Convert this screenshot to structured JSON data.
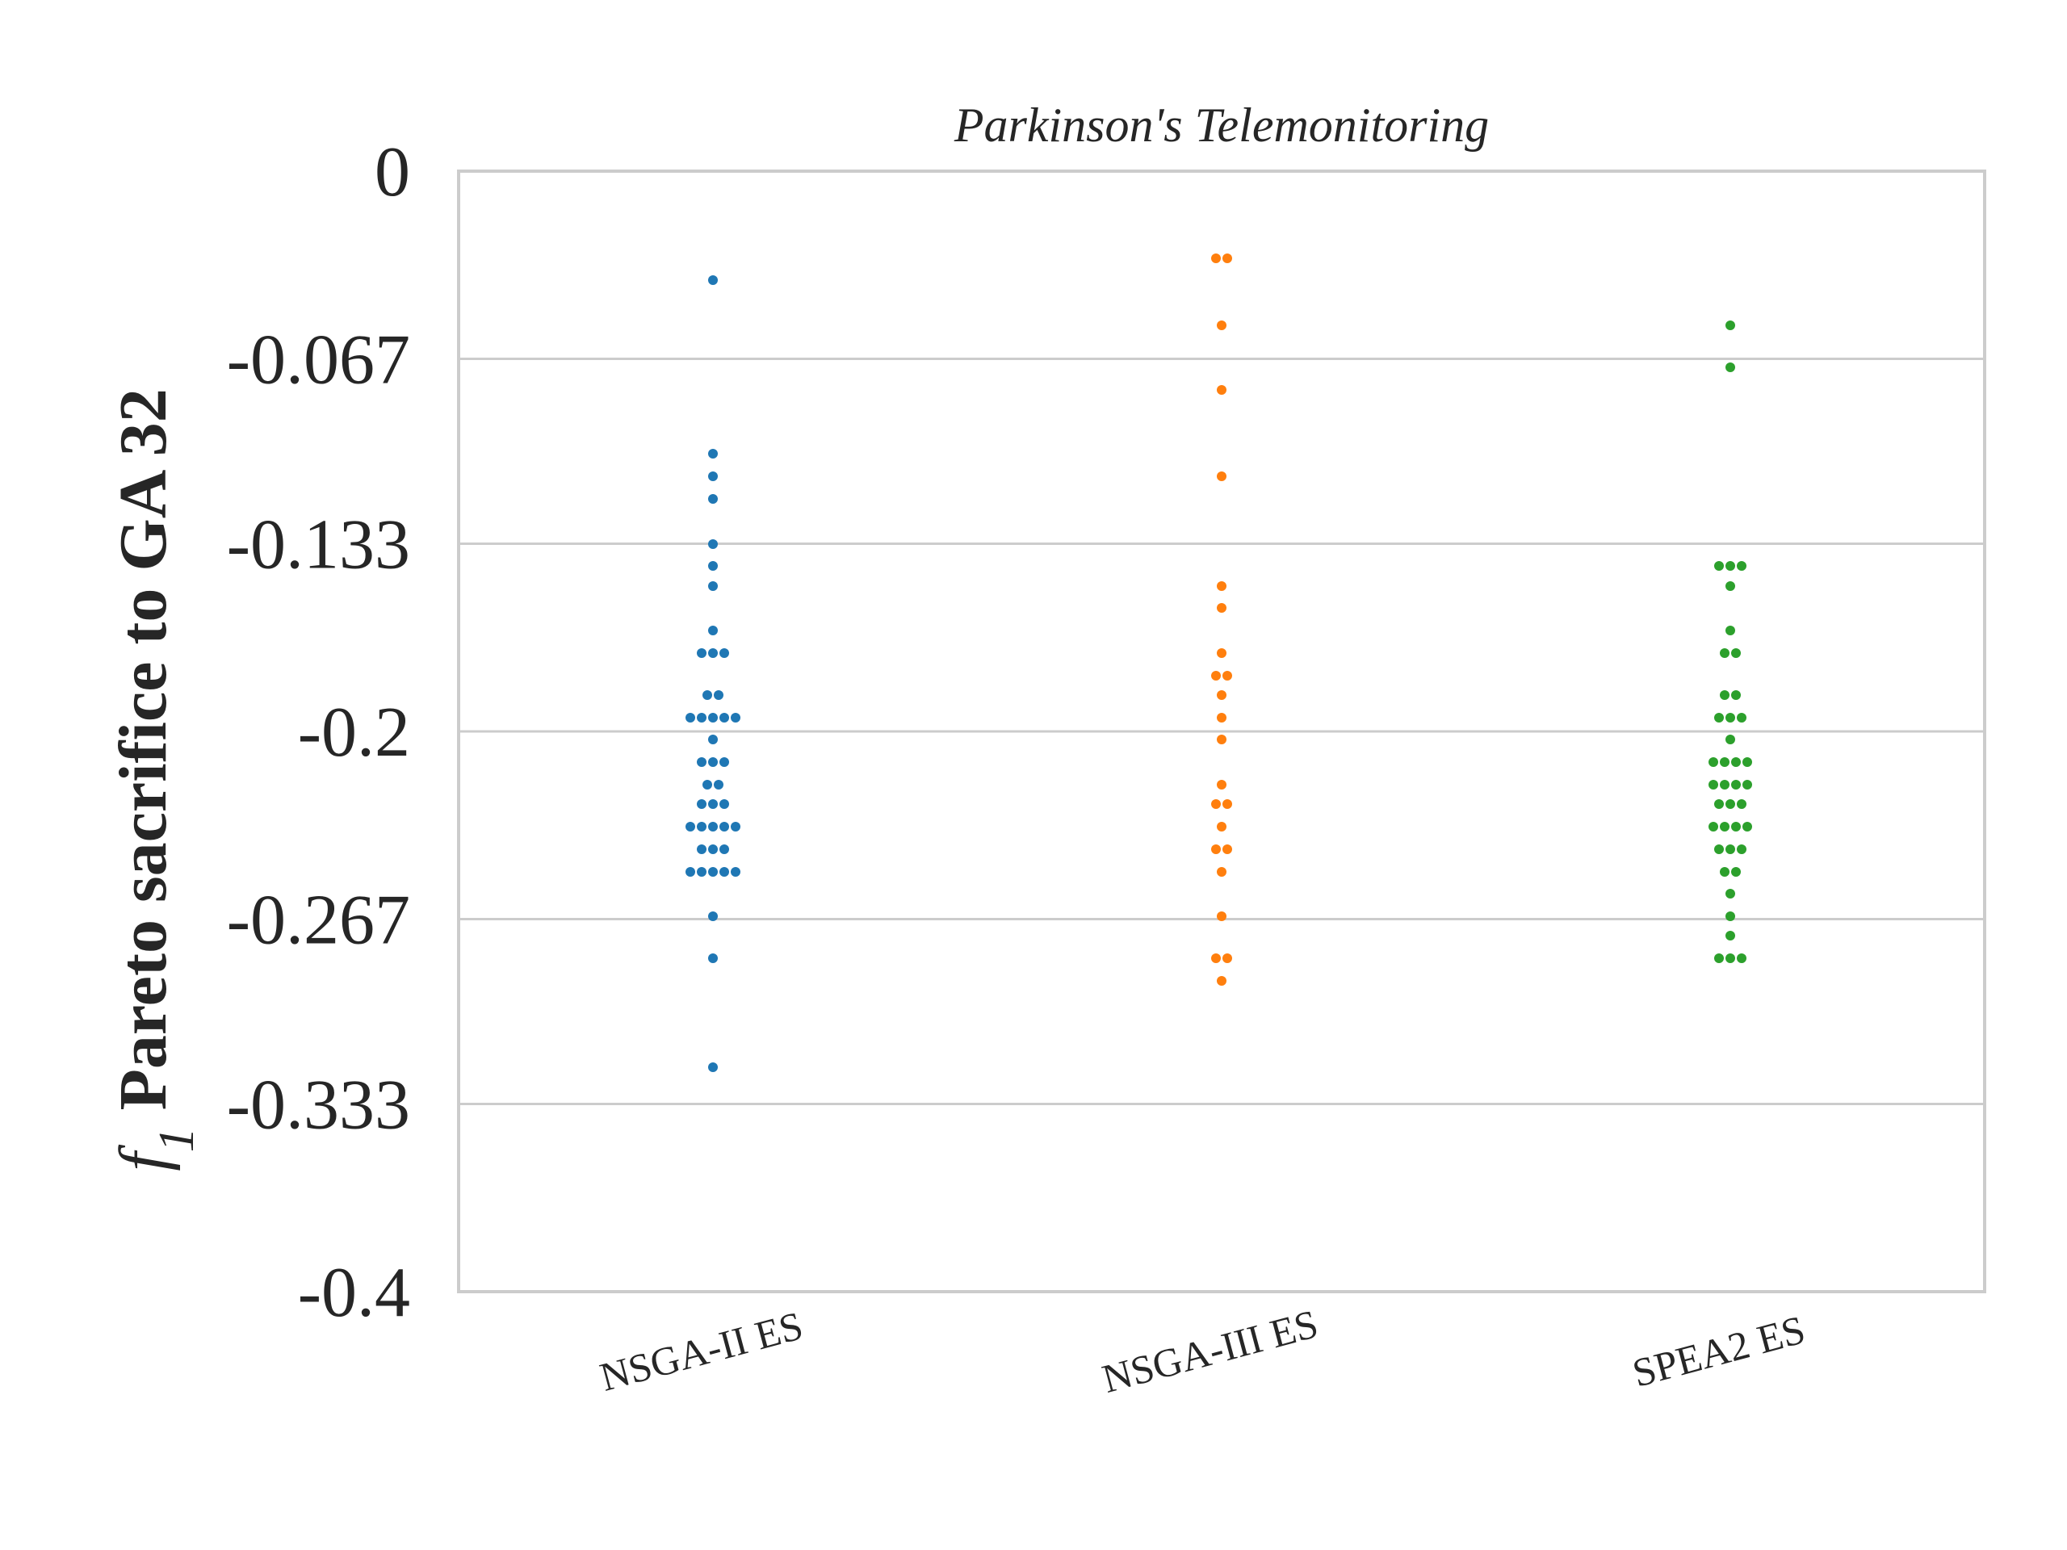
{
  "chart_data": {
    "type": "scatter",
    "subtype": "swarm",
    "title": "Parkinson's Telemonitoring",
    "ylabel_prefix": "f",
    "ylabel_subscript": "1",
    "ylabel_main": " Pareto sacrifice to GA 32",
    "xlabel": "",
    "ylim": [
      -0.4,
      0
    ],
    "yticks": [
      0,
      -0.067,
      -0.133,
      -0.2,
      -0.267,
      -0.333,
      -0.4
    ],
    "ytick_labels": [
      "0",
      "-0.067",
      "-0.133",
      "-0.2",
      "-0.267",
      "-0.333",
      "-0.4"
    ],
    "grid": true,
    "legend": "none",
    "categories": [
      "NSGA-II ES",
      "NSGA-III ES",
      "SPEA2 ES"
    ],
    "series": [
      {
        "color": "#1f77b4",
        "values": [
          -0.039,
          -0.101,
          -0.109,
          -0.117,
          -0.133,
          -0.141,
          -0.148,
          -0.164,
          -0.172,
          -0.172,
          -0.172,
          -0.187,
          -0.187,
          -0.195,
          -0.195,
          -0.195,
          -0.195,
          -0.195,
          -0.203,
          -0.211,
          -0.211,
          -0.211,
          -0.219,
          -0.219,
          -0.226,
          -0.226,
          -0.226,
          -0.234,
          -0.234,
          -0.234,
          -0.234,
          -0.234,
          -0.242,
          -0.242,
          -0.242,
          -0.25,
          -0.25,
          -0.25,
          -0.25,
          -0.25,
          -0.266,
          -0.281,
          -0.32
        ]
      },
      {
        "color": "#ff7f0e",
        "values": [
          -0.031,
          -0.031,
          -0.055,
          -0.078,
          -0.109,
          -0.148,
          -0.156,
          -0.172,
          -0.18,
          -0.18,
          -0.187,
          -0.195,
          -0.203,
          -0.219,
          -0.226,
          -0.226,
          -0.234,
          -0.242,
          -0.242,
          -0.25,
          -0.266,
          -0.281,
          -0.281,
          -0.289
        ]
      },
      {
        "color": "#2ca02c",
        "values": [
          -0.055,
          -0.07,
          -0.141,
          -0.141,
          -0.141,
          -0.148,
          -0.164,
          -0.172,
          -0.172,
          -0.187,
          -0.187,
          -0.195,
          -0.195,
          -0.195,
          -0.203,
          -0.211,
          -0.211,
          -0.211,
          -0.211,
          -0.219,
          -0.219,
          -0.219,
          -0.219,
          -0.226,
          -0.226,
          -0.226,
          -0.234,
          -0.234,
          -0.234,
          -0.234,
          -0.242,
          -0.242,
          -0.242,
          -0.25,
          -0.25,
          -0.258,
          -0.266,
          -0.273,
          -0.281,
          -0.281,
          -0.281
        ]
      }
    ]
  }
}
